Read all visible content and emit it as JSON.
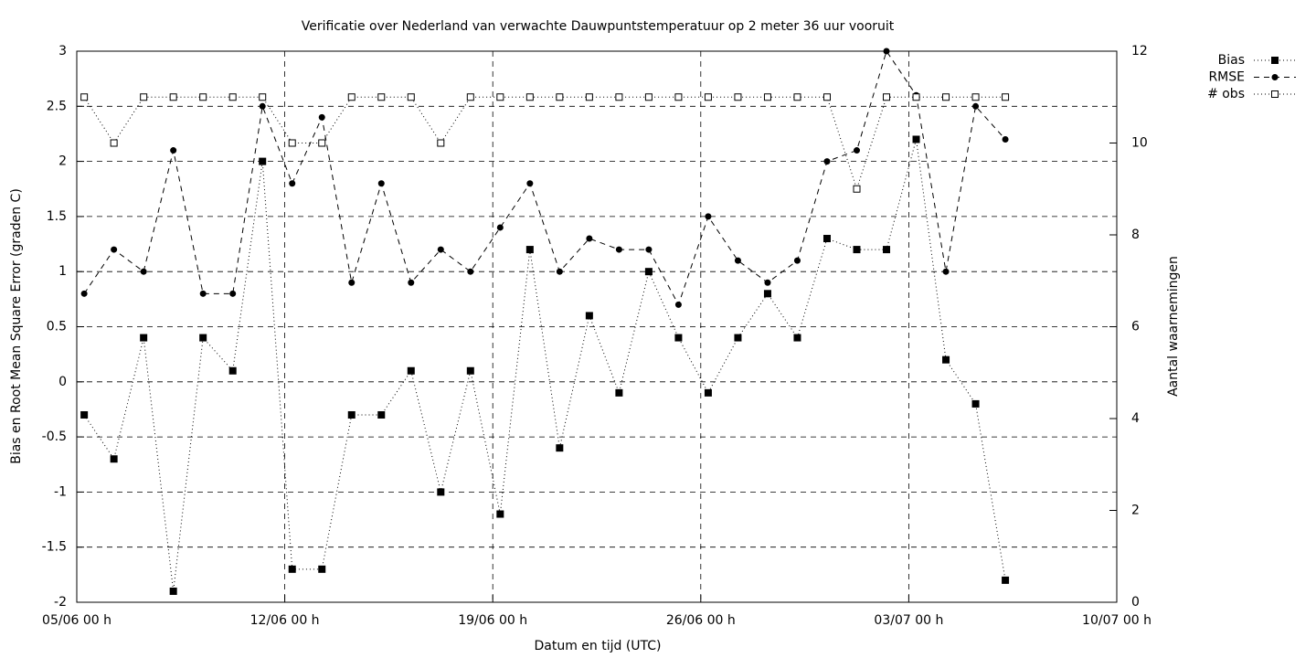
{
  "chart_data": {
    "type": "line",
    "title": "Verificatie over Nederland van verwachte Dauwpuntstemperatuur op 2 meter 36 uur vooruit",
    "xlabel": "Datum en tijd (UTC)",
    "ylabel": "Bias en Root Mean Square Error (graden C)",
    "y2label": "Aantal waarnemingen",
    "x": [
      0.25,
      1.25,
      2.25,
      3.25,
      4.25,
      5.25,
      6.25,
      7.25,
      8.25,
      9.25,
      10.25,
      11.25,
      12.25,
      13.25,
      14.25,
      15.25,
      16.25,
      17.25,
      18.25,
      19.25,
      20.25,
      21.25,
      22.25,
      23.25,
      24.25,
      25.25,
      26.25,
      27.25,
      28.25,
      29.25,
      30.25,
      31.25
    ],
    "xlim": [
      0,
      35
    ],
    "xticks": [
      {
        "value": 0,
        "label": "05/06 00 h"
      },
      {
        "value": 7,
        "label": "12/06 00 h"
      },
      {
        "value": 14,
        "label": "19/06 00 h"
      },
      {
        "value": 21,
        "label": "26/06 00 h"
      },
      {
        "value": 28,
        "label": "03/07 00 h"
      },
      {
        "value": 35,
        "label": "10/07 00 h"
      }
    ],
    "ylim": [
      -2,
      3
    ],
    "yticks": [
      -2,
      -1.5,
      -1,
      -0.5,
      0,
      0.5,
      1,
      1.5,
      2,
      2.5,
      3
    ],
    "y2lim": [
      0,
      12
    ],
    "y2ticks": [
      0,
      2,
      4,
      6,
      8,
      10,
      12
    ],
    "grid": true,
    "legend": "outside-top-right",
    "series": [
      {
        "name": "Bias",
        "color": "#000000",
        "dash": "dotted",
        "marker": "filled-square",
        "values": [
          -0.3,
          -0.7,
          0.4,
          -1.9,
          0.4,
          0.1,
          2.0,
          -1.7,
          -1.7,
          -0.3,
          -0.3,
          0.1,
          -1.0,
          0.1,
          -1.2,
          1.2,
          -0.6,
          0.6,
          -0.1,
          1.0,
          0.4,
          -0.1,
          0.4,
          0.8,
          0.4,
          1.3,
          1.2,
          1.2,
          2.2,
          0.2,
          -0.2,
          -1.8
        ]
      },
      {
        "name": "RMSE",
        "color": "#000000",
        "dash": "dashed",
        "marker": "filled-circle",
        "values": [
          0.8,
          1.2,
          1.0,
          2.1,
          0.8,
          0.8,
          2.5,
          1.8,
          2.4,
          0.9,
          1.8,
          0.9,
          1.2,
          1.0,
          1.4,
          1.8,
          1.0,
          1.3,
          1.2,
          1.2,
          0.7,
          1.5,
          1.1,
          0.9,
          1.1,
          2.0,
          2.1,
          3.0,
          2.6,
          1.0,
          2.5,
          2.2
        ]
      },
      {
        "name": "# obs",
        "color": "#000000",
        "dash": "dotted",
        "marker": "open-square",
        "axis": "y2",
        "values": [
          11,
          10,
          11,
          11,
          11,
          11,
          11,
          10,
          10,
          11,
          11,
          11,
          10,
          11,
          11,
          11,
          11,
          11,
          11,
          11,
          11,
          11,
          11,
          11,
          11,
          11,
          9,
          11,
          11,
          11,
          11,
          11
        ]
      }
    ]
  }
}
